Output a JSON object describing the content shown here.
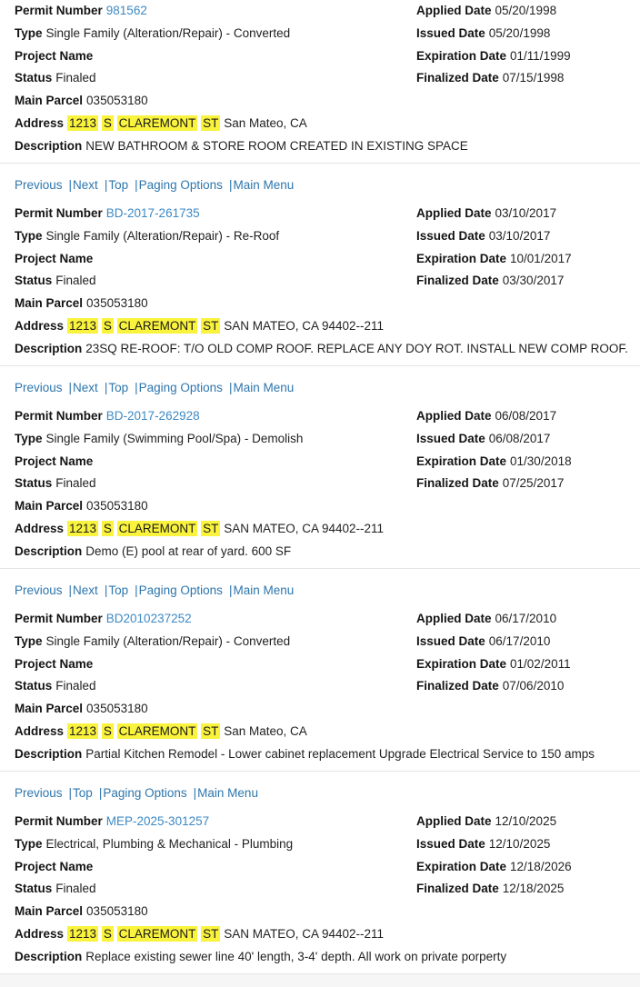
{
  "page": {
    "link_color": "#3d89c4",
    "nav_link_color": "#2d76ad",
    "highlight_color": "#faf33e",
    "divider_color": "#e4e4e4"
  },
  "labels": {
    "permit_number": "Permit Number",
    "type": "Type",
    "project_name": "Project Name",
    "status": "Status",
    "main_parcel": "Main Parcel",
    "address": "Address",
    "description": "Description",
    "applied_date": "Applied Date",
    "issued_date": "Issued Date",
    "expiration_date": "Expiration Date",
    "finalized_date": "Finalized Date"
  },
  "nav": {
    "separator": "|"
  },
  "records": [
    {
      "nav_above": null,
      "permit_number": "981562",
      "type": "Single Family (Alteration/Repair) - Converted",
      "project_name": "",
      "status": "Finaled",
      "main_parcel": "035053180",
      "address_highlight": [
        "1213",
        "S",
        "CLAREMONT",
        "ST"
      ],
      "address_rest": "San Mateo, CA",
      "description": "NEW BATHROOM & STORE ROOM CREATED IN EXISTING SPACE",
      "applied_date": "05/20/1998",
      "issued_date": "05/20/1998",
      "expiration_date": "01/11/1999",
      "finalized_date": "07/15/1998"
    },
    {
      "nav_above": [
        "Previous",
        "Next",
        "Top",
        "Paging Options",
        "Main Menu"
      ],
      "permit_number": "BD-2017-261735",
      "type": "Single Family (Alteration/Repair) - Re-Roof",
      "project_name": "",
      "status": "Finaled",
      "main_parcel": "035053180",
      "address_highlight": [
        "1213",
        "S",
        "CLAREMONT",
        "ST"
      ],
      "address_rest": "SAN MATEO, CA 94402--211",
      "description": "23SQ RE-ROOF: T/O OLD COMP ROOF. REPLACE ANY DOY ROT. INSTALL NEW COMP ROOF.",
      "applied_date": "03/10/2017",
      "issued_date": "03/10/2017",
      "expiration_date": "10/01/2017",
      "finalized_date": "03/30/2017"
    },
    {
      "nav_above": [
        "Previous",
        "Next",
        "Top",
        "Paging Options",
        "Main Menu"
      ],
      "permit_number": "BD-2017-262928",
      "type": "Single Family (Swimming Pool/Spa) - Demolish",
      "project_name": "",
      "status": "Finaled",
      "main_parcel": "035053180",
      "address_highlight": [
        "1213",
        "S",
        "CLAREMONT",
        "ST"
      ],
      "address_rest": "SAN MATEO, CA 94402--211",
      "description": "Demo (E) pool at rear of yard. 600 SF",
      "applied_date": "06/08/2017",
      "issued_date": "06/08/2017",
      "expiration_date": "01/30/2018",
      "finalized_date": "07/25/2017"
    },
    {
      "nav_above": [
        "Previous",
        "Next",
        "Top",
        "Paging Options",
        "Main Menu"
      ],
      "permit_number": "BD2010237252",
      "type": "Single Family (Alteration/Repair) - Converted",
      "project_name": "",
      "status": "Finaled",
      "main_parcel": "035053180",
      "address_highlight": [
        "1213",
        "S",
        "CLAREMONT",
        "ST"
      ],
      "address_rest": "San Mateo, CA",
      "description": "Partial Kitchen Remodel - Lower cabinet replacement Upgrade Electrical Service to 150 amps",
      "applied_date": "06/17/2010",
      "issued_date": "06/17/2010",
      "expiration_date": "01/02/2011",
      "finalized_date": "07/06/2010"
    },
    {
      "nav_above": [
        "Previous",
        "Top",
        "Paging Options",
        "Main Menu"
      ],
      "permit_number": "MEP-2025-301257",
      "type": "Electrical, Plumbing & Mechanical - Plumbing",
      "project_name": "",
      "status": "Finaled",
      "main_parcel": "035053180",
      "address_highlight": [
        "1213",
        "S",
        "CLAREMONT",
        "ST"
      ],
      "address_rest": "SAN MATEO, CA 94402--211",
      "description": "Replace existing sewer line 40' length, 3-4' depth. All work on private porperty",
      "applied_date": "12/10/2025",
      "issued_date": "12/10/2025",
      "expiration_date": "12/18/2026",
      "finalized_date": "12/18/2025"
    }
  ]
}
